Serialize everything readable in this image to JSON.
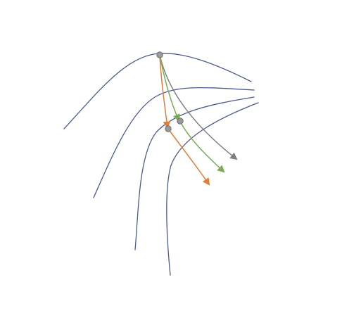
{
  "diagram": {
    "title": "",
    "colors": {
      "background": "#ffffff",
      "level_curve": "#4b5b8c",
      "gray_path": "#808080",
      "green_path": "#7aab55",
      "orange_path": "#e07d3a",
      "point_fill": "#9a9a9a",
      "point_stroke": "#6f6f6f"
    },
    "level_curves": [
      {
        "name": "curve-1"
      },
      {
        "name": "curve-2"
      },
      {
        "name": "curve-3"
      },
      {
        "name": "curve-4"
      }
    ],
    "paths": [
      {
        "name": "gray-path",
        "color_key": "gray_path"
      },
      {
        "name": "green-path",
        "color_key": "green_path"
      },
      {
        "name": "orange-path",
        "color_key": "orange_path"
      }
    ],
    "points": [
      {
        "name": "start-point"
      },
      {
        "name": "orange-midpoint"
      },
      {
        "name": "green-midpoint"
      }
    ]
  }
}
